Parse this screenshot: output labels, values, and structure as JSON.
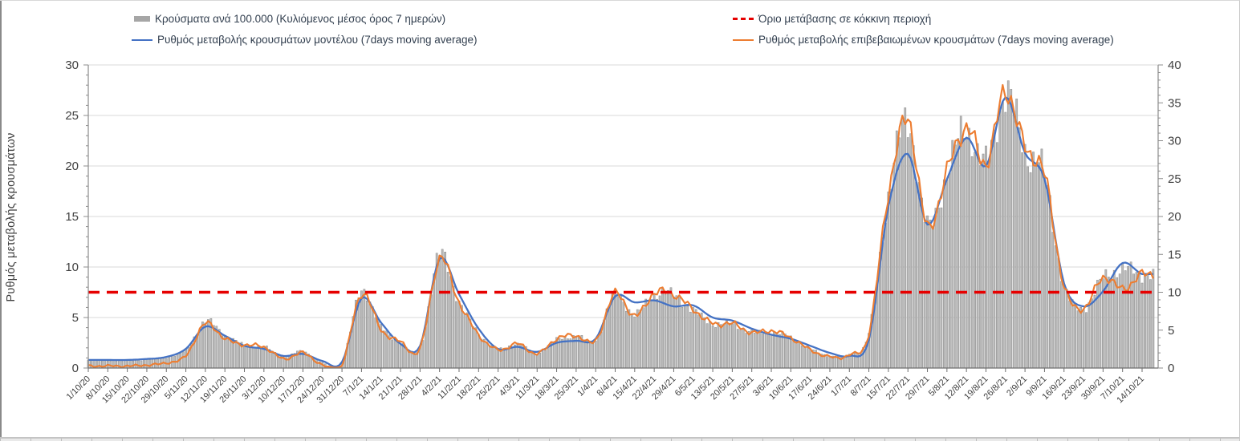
{
  "chart_data": {
    "type": "bar",
    "combo": "daily gray bars (right axis) + two 7-day moving-average lines (left axis) + red dashed threshold",
    "title": "",
    "y_left": {
      "label": "Ρυθμός μεταβολής κρουσμάτων",
      "range": [
        0,
        30
      ],
      "tick_step": 5,
      "ticks": [
        "0",
        "5",
        "10",
        "15",
        "20",
        "25",
        "30"
      ]
    },
    "y_right": {
      "label": "",
      "range": [
        0,
        40
      ],
      "tick_step": 5,
      "ticks": [
        "0",
        "5",
        "10",
        "15",
        "20",
        "25",
        "30",
        "35",
        "40"
      ]
    },
    "grid": "horizontal gridlines at left-axis majors",
    "legend_position": "top (two columns, two rows)",
    "categories": [
      "1/10/20",
      "8/10/20",
      "15/10/20",
      "22/10/20",
      "29/10/20",
      "5/11/20",
      "12/11/20",
      "19/11/20",
      "26/11/20",
      "3/12/20",
      "10/12/20",
      "17/12/20",
      "24/12/20",
      "31/12/20",
      "7/1/21",
      "14/1/21",
      "21/1/21",
      "28/1/21",
      "4/2/21",
      "11/2/21",
      "18/2/21",
      "25/2/21",
      "4/3/21",
      "11/3/21",
      "18/3/21",
      "25/3/21",
      "1/4/21",
      "8/4/21",
      "15/4/21",
      "22/4/21",
      "29/4/21",
      "6/5/21",
      "13/5/21",
      "20/5/21",
      "27/5/21",
      "3/6/21",
      "10/6/21",
      "17/6/21",
      "24/6/21",
      "1/7/21",
      "8/7/21",
      "15/7/21",
      "22/7/21",
      "29/7/21",
      "5/8/21",
      "12/8/21",
      "19/8/21",
      "26/8/21",
      "2/9/21",
      "9/9/21",
      "16/9/21",
      "23/9/21",
      "30/9/21",
      "7/10/21",
      "14/10/21"
    ],
    "sampling_note": "series are daily; values below are read at the weekly x-tick positions",
    "series": [
      {
        "name": "Κρούσματα ανά 100.000 (Κυλιόμενος μέσος όρος 7 ημερών)",
        "type": "bar",
        "axis": "right",
        "color": "#b9b9b9",
        "values": [
          1.0,
          1.0,
          1.0,
          1.1,
          1.4,
          2.4,
          6.1,
          4.4,
          3.0,
          2.8,
          1.5,
          2.2,
          0.7,
          0.6,
          10.2,
          5.4,
          3.4,
          2.7,
          14.9,
          8.8,
          4.6,
          2.5,
          3.2,
          1.9,
          3.7,
          4.2,
          3.7,
          9.8,
          7.0,
          9.7,
          9.6,
          7.6,
          5.9,
          5.8,
          4.7,
          4.8,
          4.0,
          2.5,
          1.6,
          1.8,
          4.6,
          22.8,
          32.5,
          18.6,
          25.8,
          31.5,
          27.0,
          36.3,
          28.9,
          25.3,
          10.9,
          7.9,
          11.8,
          13.0,
          12.4
        ]
      },
      {
        "name": "Ρυθμός μεταβολής κρουσμάτων μοντέλου (7days moving average)",
        "type": "line",
        "axis": "left",
        "color": "#4472c4",
        "values": [
          0.8,
          0.8,
          0.8,
          0.9,
          1.1,
          1.9,
          4.1,
          3.2,
          2.2,
          1.9,
          1.2,
          1.4,
          0.7,
          0.6,
          6.9,
          4.5,
          2.4,
          2.2,
          10.8,
          7.3,
          3.9,
          1.9,
          2.1,
          1.6,
          2.5,
          2.7,
          2.9,
          7.1,
          6.5,
          6.7,
          6.1,
          6.2,
          5.0,
          4.7,
          3.9,
          3.3,
          2.9,
          2.2,
          1.5,
          1.2,
          2.8,
          16.0,
          21.2,
          14.2,
          18.7,
          22.8,
          20.0,
          26.8,
          21.3,
          18.7,
          8.4,
          6.1,
          7.6,
          10.4,
          9.3
        ]
      },
      {
        "name": "Ρυθμός μεταβολής επιβεβαιωμένων κρουσμάτων (7days moving average)",
        "type": "line",
        "axis": "left",
        "color": "#ed7d31",
        "values": [
          0.2,
          0.2,
          0.2,
          0.3,
          0.5,
          1.2,
          4.4,
          2.9,
          2.3,
          2.1,
          0.9,
          1.5,
          0.3,
          0.3,
          7.4,
          3.8,
          2.6,
          1.9,
          10.8,
          6.5,
          3.3,
          1.8,
          2.4,
          1.4,
          2.9,
          3.2,
          2.7,
          7.4,
          5.1,
          7.4,
          7.3,
          5.8,
          4.4,
          4.4,
          3.5,
          3.7,
          3.0,
          1.8,
          1.1,
          1.3,
          3.4,
          17.3,
          24.6,
          13.9,
          19.5,
          23.8,
          20.3,
          27.4,
          21.8,
          19.2,
          8.1,
          5.9,
          9.0,
          7.8,
          9.3
        ]
      },
      {
        "name": "Όριο μετάβασης σε κόκκινη περιοχή",
        "type": "threshold",
        "axis": "left",
        "color": "#e60000",
        "value": 7.5
      }
    ]
  },
  "legend": {
    "bars_label": "Κρούσματα ανά 100.000 (Κυλιόμενος μέσος όρος 7 ημερών)",
    "model_label": "Ρυθμός μεταβολής κρουσμάτων μοντέλου (7days moving average)",
    "threshold_label": "Όριο μετάβασης  σε κόκκινη περιοχή",
    "confirmed_label": "Ρυθμός μεταβολής επιβεβαιωμένων κρουσμάτων (7days moving average)"
  },
  "colors": {
    "bars": "#b9b9b9",
    "bar_stroke": "#8f8f8f",
    "model_line": "#4472c4",
    "confirmed_line": "#ed7d31",
    "threshold": "#e60000",
    "grid": "#d9d9d9",
    "axis": "#8c8c8c",
    "tick_text": "#3f3f3f"
  }
}
